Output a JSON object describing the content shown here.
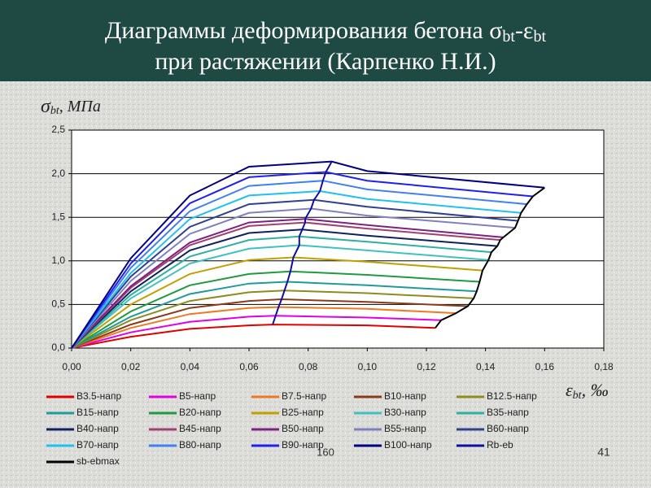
{
  "slide": {
    "page_number": "41",
    "footer_mark": "160"
  },
  "chart_data": {
    "type": "line",
    "title_parts": [
      "Диаграммы деформирования бетона σ",
      "bt",
      "-ε",
      "bt"
    ],
    "title_line2": "при растяжении (Карпенко Н.И.)",
    "y_label_parts": [
      "σ",
      "bt",
      ", МПа"
    ],
    "x_label_parts": [
      "ε",
      "bt",
      ", ‰"
    ],
    "xlim": [
      0,
      0.18
    ],
    "xticks": [
      {
        "value": 0,
        "label": "0,00"
      },
      {
        "value": 0.02,
        "label": "0,02"
      },
      {
        "value": 0.04,
        "label": "0,04"
      },
      {
        "value": 0.06,
        "label": "0,06"
      },
      {
        "value": 0.08,
        "label": "0,08"
      },
      {
        "value": 0.1,
        "label": "0,10"
      },
      {
        "value": 0.12,
        "label": "0,12"
      },
      {
        "value": 0.14,
        "label": "0,14"
      },
      {
        "value": 0.16,
        "label": "0,16"
      },
      {
        "value": 0.18,
        "label": "0,18"
      }
    ],
    "ylim": [
      0,
      2.5
    ],
    "yticks": [
      {
        "value": 0,
        "label": "0,0"
      },
      {
        "value": 0.5,
        "label": "0,5"
      },
      {
        "value": 1,
        "label": "1,0"
      },
      {
        "value": 1.5,
        "label": "1,5"
      },
      {
        "value": 2,
        "label": "2,0"
      },
      {
        "value": 2.5,
        "label": "2,5"
      }
    ],
    "grid": true,
    "series": [
      {
        "name": "B3.5-напр",
        "color": "#e00000",
        "x": [
          0,
          0.02,
          0.04,
          0.06,
          0.068,
          0.1,
          0.123
        ],
        "values": [
          0,
          0.13,
          0.22,
          0.26,
          0.27,
          0.26,
          0.23
        ]
      },
      {
        "name": "B5-напр",
        "color": "#e000e0",
        "x": [
          0,
          0.02,
          0.04,
          0.06,
          0.069,
          0.1,
          0.125
        ],
        "values": [
          0,
          0.18,
          0.3,
          0.36,
          0.37,
          0.35,
          0.32
        ]
      },
      {
        "name": "B7.5-напр",
        "color": "#f07820",
        "x": [
          0,
          0.02,
          0.04,
          0.06,
          0.07,
          0.1,
          0.13
        ],
        "values": [
          0,
          0.23,
          0.39,
          0.46,
          0.47,
          0.45,
          0.4
        ]
      },
      {
        "name": "B10-напр",
        "color": "#8b3a1a",
        "x": [
          0,
          0.02,
          0.04,
          0.06,
          0.071,
          0.1,
          0.134
        ],
        "values": [
          0,
          0.27,
          0.46,
          0.54,
          0.56,
          0.53,
          0.48
        ]
      },
      {
        "name": "B12.5-напр",
        "color": "#8c8c20",
        "x": [
          0,
          0.02,
          0.04,
          0.06,
          0.072,
          0.1,
          0.136
        ],
        "values": [
          0,
          0.32,
          0.54,
          0.64,
          0.66,
          0.63,
          0.57
        ]
      },
      {
        "name": "B15-напр",
        "color": "#209a9a",
        "x": [
          0,
          0.02,
          0.04,
          0.06,
          0.073,
          0.1,
          0.137
        ],
        "values": [
          0,
          0.36,
          0.62,
          0.74,
          0.76,
          0.72,
          0.65
        ]
      },
      {
        "name": "B20-напр",
        "color": "#209a40",
        "x": [
          0,
          0.02,
          0.04,
          0.06,
          0.074,
          0.1,
          0.138
        ],
        "values": [
          0,
          0.42,
          0.72,
          0.85,
          0.88,
          0.84,
          0.76
        ]
      },
      {
        "name": "B25-напр",
        "color": "#c0a000",
        "x": [
          0,
          0.02,
          0.04,
          0.06,
          0.075,
          0.1,
          0.139
        ],
        "values": [
          0,
          0.5,
          0.85,
          1.01,
          1.04,
          0.99,
          0.89
        ]
      },
      {
        "name": "B30-напр",
        "color": "#40c0c0",
        "x": [
          0,
          0.02,
          0.04,
          0.06,
          0.077,
          0.1,
          0.141
        ],
        "values": [
          0,
          0.57,
          0.97,
          1.14,
          1.18,
          1.12,
          1.01
        ]
      },
      {
        "name": "B35-напр",
        "color": "#30b0a0",
        "x": [
          0,
          0.02,
          0.04,
          0.06,
          0.077,
          0.1,
          0.142
        ],
        "values": [
          0,
          0.61,
          1.05,
          1.24,
          1.28,
          1.22,
          1.1
        ]
      },
      {
        "name": "B40-напр",
        "color": "#102060",
        "x": [
          0,
          0.02,
          0.04,
          0.06,
          0.078,
          0.1,
          0.144
        ],
        "values": [
          0,
          0.65,
          1.12,
          1.32,
          1.36,
          1.29,
          1.17
        ]
      },
      {
        "name": "B45-напр",
        "color": "#a04070",
        "x": [
          0,
          0.02,
          0.04,
          0.06,
          0.079,
          0.1,
          0.145
        ],
        "values": [
          0,
          0.69,
          1.18,
          1.4,
          1.44,
          1.37,
          1.24
        ]
      },
      {
        "name": "B50-напр",
        "color": "#802080",
        "x": [
          0,
          0.02,
          0.04,
          0.06,
          0.079,
          0.1,
          0.146
        ],
        "values": [
          0,
          0.71,
          1.21,
          1.44,
          1.48,
          1.41,
          1.27
        ]
      },
      {
        "name": "B55-напр",
        "color": "#8080c0",
        "x": [
          0,
          0.02,
          0.04,
          0.06,
          0.081,
          0.1,
          0.15
        ],
        "values": [
          0,
          0.77,
          1.31,
          1.55,
          1.6,
          1.52,
          1.38
        ]
      },
      {
        "name": "B60-напр",
        "color": "#304090",
        "x": [
          0,
          0.02,
          0.04,
          0.06,
          0.082,
          0.1,
          0.151
        ],
        "values": [
          0,
          0.82,
          1.39,
          1.65,
          1.7,
          1.62,
          1.46
        ]
      },
      {
        "name": "B70-напр",
        "color": "#20c0f0",
        "x": [
          0,
          0.02,
          0.04,
          0.06,
          0.084,
          0.1,
          0.152
        ],
        "values": [
          0,
          0.86,
          1.48,
          1.75,
          1.8,
          1.71,
          1.55
        ]
      },
      {
        "name": "B80-напр",
        "color": "#4080f0",
        "x": [
          0,
          0.02,
          0.04,
          0.06,
          0.085,
          0.1,
          0.154
        ],
        "values": [
          0,
          0.92,
          1.57,
          1.86,
          1.92,
          1.82,
          1.65
        ]
      },
      {
        "name": "B90-напр",
        "color": "#2020f0",
        "x": [
          0,
          0.02,
          0.04,
          0.06,
          0.086,
          0.1,
          0.156
        ],
        "values": [
          0,
          0.97,
          1.66,
          1.96,
          2.02,
          1.92,
          1.74
        ]
      },
      {
        "name": "B100-напр",
        "color": "#000080",
        "x": [
          0,
          0.02,
          0.04,
          0.06,
          0.088,
          0.1,
          0.16
        ],
        "values": [
          0,
          1.03,
          1.75,
          2.08,
          2.14,
          2.03,
          1.84
        ]
      },
      {
        "name": "Rb-eb",
        "color": "#1010a0",
        "x": [
          0.068,
          0.069,
          0.07,
          0.071,
          0.072,
          0.073,
          0.074,
          0.075,
          0.077,
          0.077,
          0.078,
          0.079,
          0.079,
          0.081,
          0.082,
          0.084,
          0.085,
          0.086,
          0.088
        ],
        "values": [
          0.27,
          0.37,
          0.47,
          0.56,
          0.66,
          0.76,
          0.88,
          1.04,
          1.18,
          1.28,
          1.36,
          1.44,
          1.48,
          1.6,
          1.7,
          1.8,
          1.92,
          2.02,
          2.14
        ]
      },
      {
        "name": "sb-ebmax",
        "color": "#000000",
        "x": [
          0.123,
          0.125,
          0.13,
          0.134,
          0.136,
          0.137,
          0.138,
          0.139,
          0.141,
          0.142,
          0.144,
          0.145,
          0.146,
          0.15,
          0.151,
          0.152,
          0.154,
          0.156,
          0.16
        ],
        "values": [
          0.23,
          0.32,
          0.4,
          0.48,
          0.57,
          0.65,
          0.76,
          0.89,
          1.01,
          1.1,
          1.17,
          1.24,
          1.27,
          1.38,
          1.46,
          1.55,
          1.65,
          1.74,
          1.84
        ]
      }
    ]
  }
}
